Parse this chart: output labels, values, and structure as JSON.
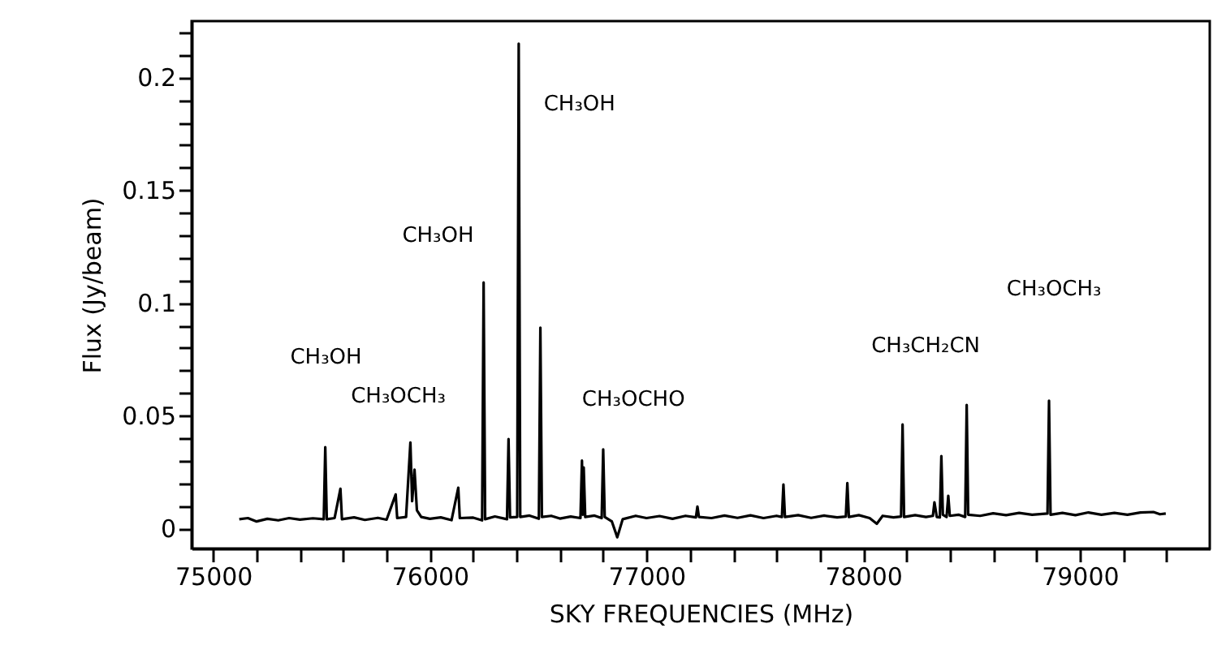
{
  "chart_data": {
    "type": "line",
    "xlabel": "SKY FREQUENCIES (MHz)",
    "ylabel": "Flux (Jy/beam)",
    "xlim": [
      74900,
      79600
    ],
    "ylim": [
      -0.009,
      0.225
    ],
    "xticks": [
      75000,
      {
        "value": 75200,
        "label": null
      },
      {
        "value": 75400,
        "label": null
      },
      {
        "value": 75600,
        "label": null
      },
      {
        "value": 75800,
        "label": null
      },
      76000,
      {
        "value": 76200,
        "label": null
      },
      {
        "value": 76400,
        "label": null
      },
      {
        "value": 76600,
        "label": null
      },
      {
        "value": 76800,
        "label": null
      },
      77000,
      {
        "value": 77200,
        "label": null
      },
      {
        "value": 77400,
        "label": null
      },
      {
        "value": 77600,
        "label": null
      },
      {
        "value": 77800,
        "label": null
      },
      78000,
      {
        "value": 78200,
        "label": null
      },
      {
        "value": 78400,
        "label": null
      },
      {
        "value": 78600,
        "label": null
      },
      {
        "value": 78800,
        "label": null
      },
      79000,
      {
        "value": 79200,
        "label": null
      },
      {
        "value": 79400,
        "label": null
      }
    ],
    "yticks": [
      0,
      {
        "value": 0.01,
        "label": null
      },
      {
        "value": 0.02,
        "label": null
      },
      {
        "value": 0.03,
        "label": null
      },
      {
        "value": 0.04,
        "label": null
      },
      0.05,
      {
        "value": 0.06,
        "label": null
      },
      {
        "value": 0.07,
        "label": null
      },
      {
        "value": 0.08,
        "label": null
      },
      {
        "value": 0.09,
        "label": null
      },
      0.1,
      {
        "value": 0.11,
        "label": null
      },
      {
        "value": 0.12,
        "label": null
      },
      {
        "value": 0.13,
        "label": null
      },
      {
        "value": 0.14,
        "label": null
      },
      0.15,
      {
        "value": 0.16,
        "label": null
      },
      {
        "value": 0.17,
        "label": null
      },
      {
        "value": 0.18,
        "label": null
      },
      {
        "value": 0.19,
        "label": null
      },
      0.2,
      {
        "value": 0.21,
        "label": null
      },
      {
        "value": 0.22,
        "label": null
      }
    ],
    "grid": false,
    "marker": "none",
    "line_style": "solid",
    "series": [
      {
        "color": "#000000",
        "x": [
          75120,
          75160,
          75200,
          75250,
          75300,
          75350,
          75400,
          75460,
          75510,
          75517,
          75524,
          75560,
          75587,
          75594,
          75650,
          75700,
          75760,
          75800,
          75842,
          75849,
          75890,
          75910,
          75918,
          75929,
          75940,
          75960,
          76000,
          76050,
          76100,
          76131,
          76138,
          76200,
          76241,
          76248,
          76255,
          76300,
          76356,
          76363,
          76370,
          76403,
          76410,
          76417,
          76460,
          76503,
          76510,
          76517,
          76560,
          76600,
          76650,
          76695,
          76702,
          76706,
          76710,
          76717,
          76760,
          76793,
          76800,
          76807,
          76840,
          76865,
          76890,
          76950,
          77000,
          77060,
          77120,
          77180,
          77228,
          77235,
          77242,
          77300,
          77360,
          77420,
          77480,
          77540,
          77600,
          77625,
          77632,
          77639,
          77700,
          77760,
          77820,
          77880,
          77920,
          77927,
          77934,
          77980,
          78030,
          78063,
          78090,
          78140,
          78175,
          78182,
          78189,
          78240,
          78290,
          78322,
          78329,
          78340,
          78354,
          78361,
          78368,
          78385,
          78393,
          78400,
          78440,
          78471,
          78478,
          78485,
          78540,
          78600,
          78660,
          78720,
          78780,
          78851,
          78858,
          78865,
          78920,
          78980,
          79040,
          79100,
          79160,
          79220,
          79280,
          79340,
          79370,
          79397
        ],
        "values": [
          0.004,
          0.0045,
          0.003,
          0.0042,
          0.0035,
          0.0045,
          0.0038,
          0.0044,
          0.004,
          0.036,
          0.004,
          0.0045,
          0.0175,
          0.004,
          0.0048,
          0.0037,
          0.0046,
          0.0038,
          0.015,
          0.0045,
          0.005,
          0.038,
          0.012,
          0.026,
          0.008,
          0.005,
          0.0042,
          0.0048,
          0.0036,
          0.018,
          0.0045,
          0.0047,
          0.0035,
          0.109,
          0.004,
          0.0052,
          0.004,
          0.0396,
          0.0048,
          0.005,
          0.215,
          0.005,
          0.0056,
          0.0042,
          0.089,
          0.005,
          0.0055,
          0.0043,
          0.0052,
          0.0045,
          0.03,
          0.006,
          0.027,
          0.005,
          0.0056,
          0.0045,
          0.035,
          0.005,
          0.003,
          -0.004,
          0.004,
          0.0055,
          0.0045,
          0.0054,
          0.0042,
          0.0055,
          0.0048,
          0.0096,
          0.005,
          0.0045,
          0.0056,
          0.0046,
          0.0057,
          0.0045,
          0.0055,
          0.005,
          0.0194,
          0.005,
          0.0058,
          0.0046,
          0.0056,
          0.0048,
          0.0052,
          0.02,
          0.005,
          0.0058,
          0.0045,
          0.002,
          0.0055,
          0.0048,
          0.0052,
          0.046,
          0.005,
          0.0058,
          0.005,
          0.0055,
          0.0115,
          0.005,
          0.0048,
          0.032,
          0.006,
          0.005,
          0.0144,
          0.0055,
          0.006,
          0.005,
          0.0547,
          0.006,
          0.0055,
          0.0066,
          0.0058,
          0.0068,
          0.006,
          0.0065,
          0.0566,
          0.006,
          0.0068,
          0.0058,
          0.007,
          0.006,
          0.0068,
          0.006,
          0.007,
          0.0072,
          0.0062,
          0.0065
        ]
      }
    ],
    "annotations": [
      "CH₃OH",
      "CH₃OH",
      "CH₃OH",
      "CH₃OCH₃",
      "CH₃OCHO",
      "CH₃CH₂CN",
      "CH₃OCH₃"
    ]
  }
}
